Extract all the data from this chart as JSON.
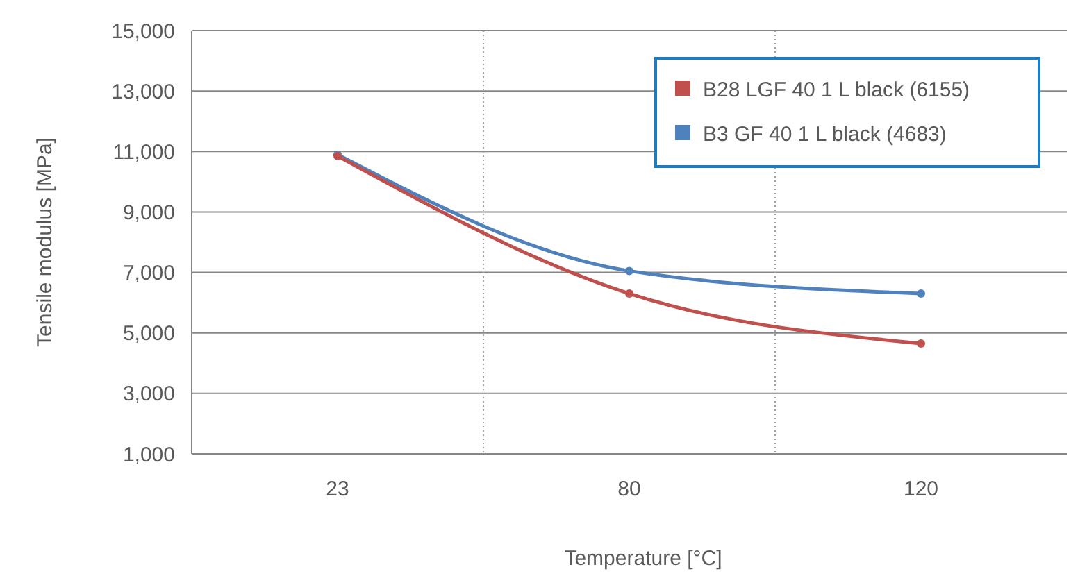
{
  "chart_data": {
    "type": "line",
    "xlabel": "Temperature [°C]",
    "ylabel": "Tensile modulus [MPa]",
    "categories": [
      "23",
      "80",
      "120"
    ],
    "series": [
      {
        "name": "B28 LGF 40 1 L black (6155)",
        "color": "#c0504d",
        "values": [
          10850,
          6300,
          4650
        ]
      },
      {
        "name": "B3 GF 40 1 L black (4683)",
        "color": "#4f81bd",
        "values": [
          10900,
          7050,
          6300
        ]
      }
    ],
    "ylim": [
      1000,
      15000
    ],
    "yticks": [
      {
        "value": 1000,
        "label": "1,000"
      },
      {
        "value": 3000,
        "label": "3,000"
      },
      {
        "value": 5000,
        "label": "5,000"
      },
      {
        "value": 7000,
        "label": "7,000"
      },
      {
        "value": 9000,
        "label": "9,000"
      },
      {
        "value": 11000,
        "label": "11,000"
      },
      {
        "value": 13000,
        "label": "13,000"
      },
      {
        "value": 15000,
        "label": "15,000"
      }
    ],
    "grid": true,
    "legend": "top right",
    "marker": "circle",
    "line_style": "solid"
  }
}
